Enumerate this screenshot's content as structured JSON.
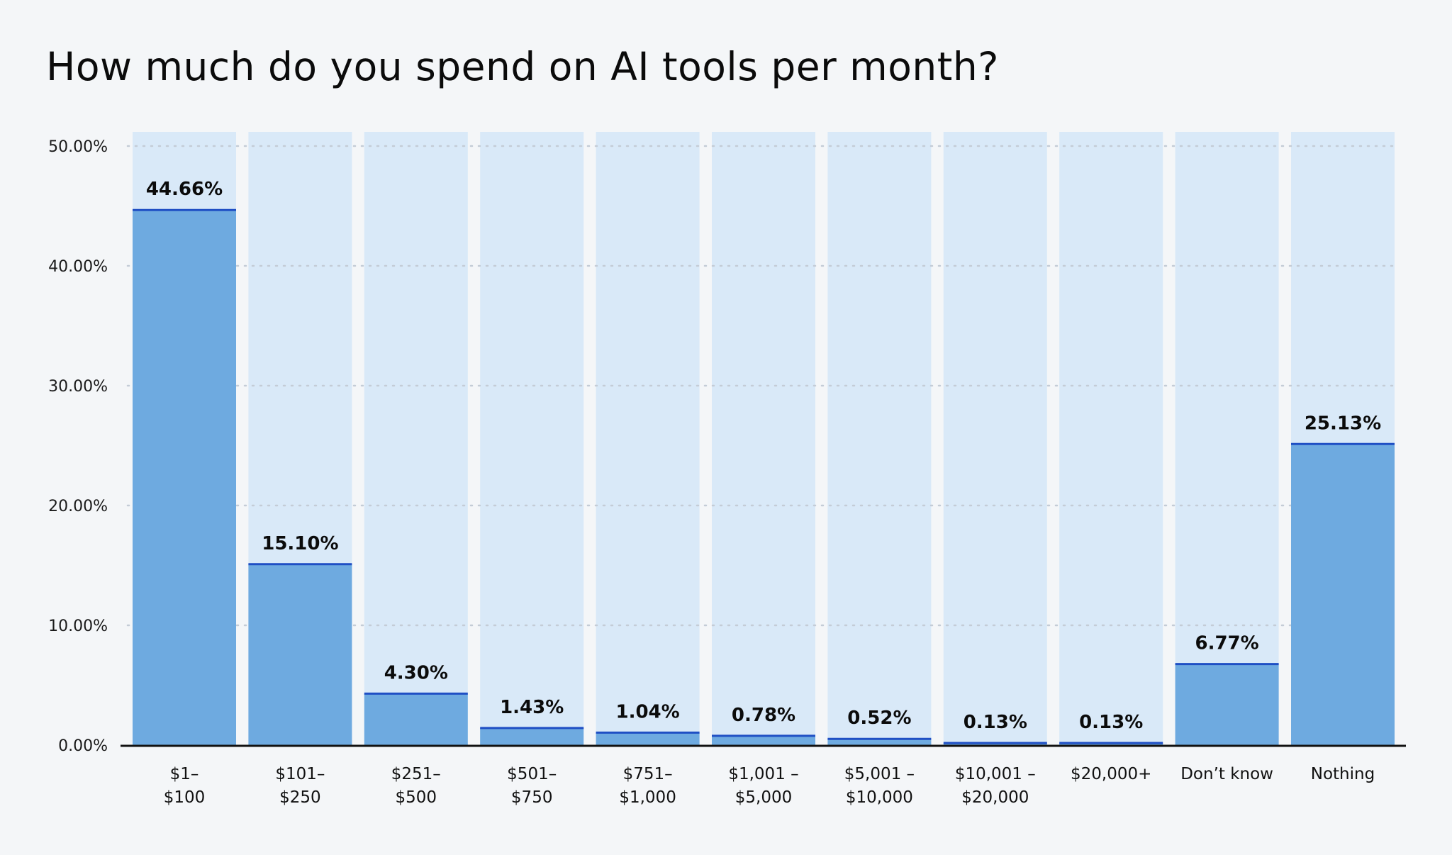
{
  "chart_data": {
    "type": "bar",
    "title": "How much do you spend on AI tools per month?",
    "categories": [
      [
        "$1–",
        "$100"
      ],
      [
        "$101–",
        "$250"
      ],
      [
        "$251–",
        "$500"
      ],
      [
        "$501–",
        "$750"
      ],
      [
        "$751–",
        "$1,000"
      ],
      [
        "$1,001 –",
        "$5,000"
      ],
      [
        "$5,001 –",
        "$10,000"
      ],
      [
        "$10,001 –",
        "$20,000"
      ],
      [
        "$20,000+"
      ],
      [
        "Don’t know"
      ],
      [
        "Nothing"
      ]
    ],
    "values": [
      44.66,
      15.1,
      4.3,
      1.43,
      1.04,
      0.78,
      0.52,
      0.13,
      0.13,
      6.77,
      25.13
    ],
    "value_labels": [
      "44.66%",
      "15.10%",
      "4.30%",
      "1.43%",
      "1.04%",
      "0.78%",
      "0.52%",
      "0.13%",
      "0.13%",
      "6.77%",
      "25.13%"
    ],
    "ylim": [
      0,
      50
    ],
    "yticks": [
      0,
      10,
      20,
      30,
      40,
      50
    ],
    "ytick_labels": [
      "0.00%",
      "10.00%",
      "20.00%",
      "30.00%",
      "40.00%",
      "50.00%"
    ],
    "xlabel": "",
    "ylabel": "",
    "grid": true,
    "colors": {
      "bar_fill": "#6eaae0",
      "bar_background": "#d9e9f8",
      "bar_cap": "#1f4fc4",
      "grid": "#c4ccd6",
      "axis": "#111111",
      "page_background": "#f4f6f8"
    }
  }
}
